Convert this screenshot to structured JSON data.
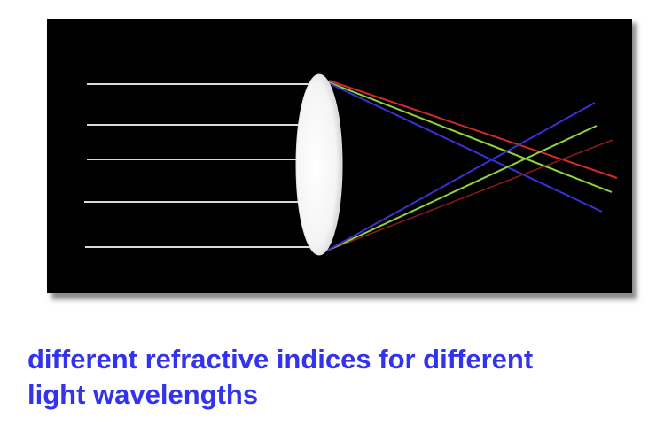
{
  "caption": {
    "line1": "different refractive indices for different",
    "line2": "light wavelengths"
  },
  "colors": {
    "background": "#000000",
    "incident_rays": "#d9d9d9",
    "lens": "#ffffff",
    "red_ray": "#d32a2a",
    "green_ray": "#8fd23a",
    "blue_ray": "#3a30d8",
    "caption": "#3333ee"
  },
  "icons": {
    "lens": "biconvex-lens-icon"
  }
}
